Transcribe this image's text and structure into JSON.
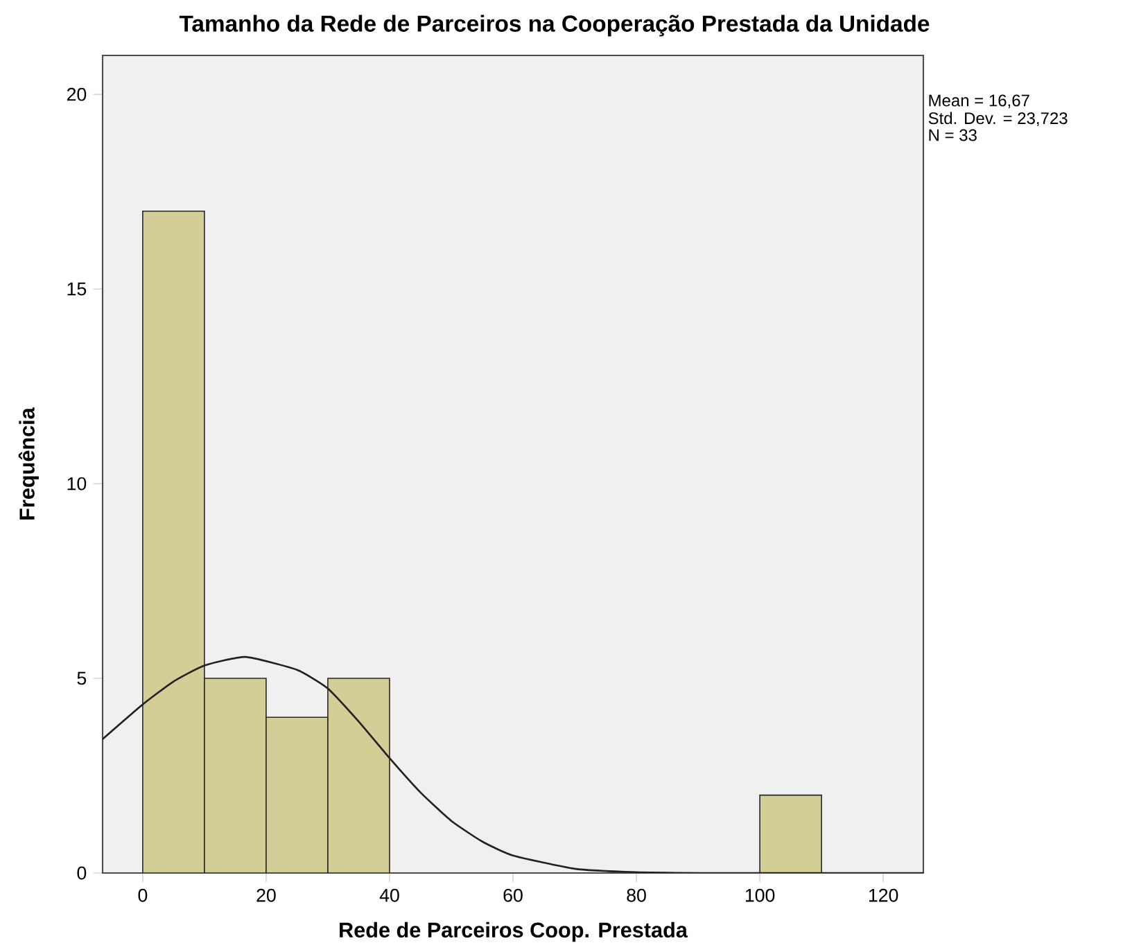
{
  "chart_data": {
    "type": "histogram",
    "title": "Tamanho da Rede de Parceiros na Cooperação Prestada da Unidade",
    "xlabel": "Rede de Parceiros Coop. Prestada",
    "ylabel": "Frequência",
    "bins": [
      0,
      10,
      20,
      30,
      40,
      50,
      60,
      70,
      80,
      90,
      100,
      110
    ],
    "values": [
      17,
      5,
      4,
      5,
      0,
      0,
      0,
      0,
      0,
      0,
      2
    ],
    "color": "#d3cd96",
    "series": [
      {
        "type": "line",
        "color": "#222222",
        "x": [
          -6.5,
          0,
          5,
          10,
          16.67,
          25,
          30,
          35,
          40,
          45,
          50,
          55,
          60,
          70,
          80,
          90,
          100,
          126.5
        ],
        "values": [
          3.44,
          4.33,
          4.92,
          5.33,
          5.55,
          5.22,
          4.74,
          3.89,
          2.95,
          2.07,
          1.34,
          0.81,
          0.45,
          0.11,
          0.02,
          0.0,
          0.0,
          0.0
        ]
      }
    ],
    "xlim": [
      -6.5,
      126.5
    ],
    "ylim": [
      0,
      21
    ],
    "xticks": [
      0,
      20,
      40,
      60,
      80,
      100,
      120
    ],
    "yticks": [
      0,
      5,
      10,
      15,
      20
    ],
    "annotations": [
      "Mean = 16,67",
      "Std. Dev. = 23,723",
      "N = 33"
    ]
  }
}
